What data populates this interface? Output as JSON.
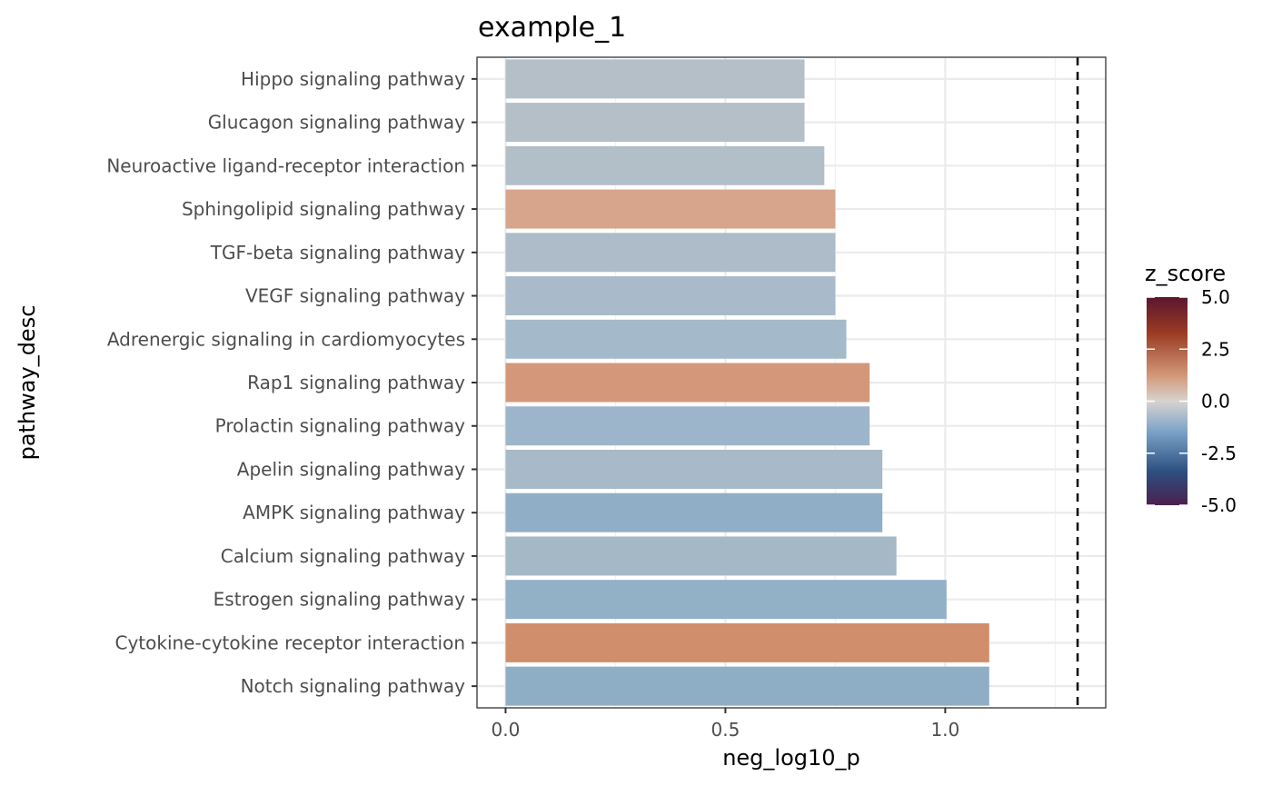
{
  "chart_data": {
    "type": "bar",
    "orientation": "horizontal",
    "title": "example_1",
    "xlabel": "neg_log10_p",
    "ylabel": "pathway_desc",
    "xlim": [
      -0.065,
      1.365
    ],
    "x_ticks": [
      0.0,
      0.5,
      1.0
    ],
    "x_tick_labels": [
      "0.0",
      "0.5",
      "1.0"
    ],
    "grid": true,
    "reference_line": {
      "x": 1.301,
      "style": "dashed",
      "color": "#000000"
    },
    "categories": [
      "Hippo signaling pathway",
      "Glucagon signaling pathway",
      "Neuroactive ligand-receptor interaction",
      "Sphingolipid signaling pathway",
      "TGF-beta signaling pathway",
      "VEGF signaling pathway",
      "Adrenergic signaling in cardiomyocytes",
      "Rap1 signaling pathway",
      "Prolactin signaling pathway",
      "Apelin signaling pathway",
      "AMPK signaling pathway",
      "Calcium signaling pathway",
      "Estrogen signaling pathway",
      "Cytokine-cytokine receptor interaction",
      "Notch signaling pathway"
    ],
    "values": [
      0.68,
      0.68,
      0.725,
      0.75,
      0.75,
      0.75,
      0.775,
      0.828,
      0.828,
      0.857,
      0.857,
      0.889,
      1.003,
      1.1,
      1.1
    ],
    "z_score": [
      -0.4,
      -0.4,
      -0.5,
      1.0,
      -0.8,
      -0.9,
      -1.1,
      1.3,
      -1.3,
      -0.9,
      -1.7,
      -0.9,
      -1.6,
      1.6,
      -1.6
    ],
    "bar_colors": [
      "#b5bfc7",
      "#b5bfc7",
      "#b3bfc8",
      "#d6a58b",
      "#adbcc8",
      "#a9bbca",
      "#a4bacb",
      "#d4977a",
      "#9db5ca",
      "#a8b9c8",
      "#90afc7",
      "#a4b8c5",
      "#92b0c6",
      "#d08e6c",
      "#8eaec6"
    ],
    "legend": {
      "title": "z_score",
      "placement": "right",
      "range": [
        -5.0,
        5.0
      ],
      "tick_values": [
        5.0,
        2.5,
        0.0,
        -2.5,
        -5.0
      ],
      "tick_labels": [
        "5.0",
        "2.5",
        "0.0",
        "-2.5",
        "-5.0"
      ],
      "gradient_colors": [
        "#5a1630",
        "#9a3a22",
        "#d39a7a",
        "#d7d3d0",
        "#7aa1c8",
        "#2c4f7f",
        "#4c1f4f"
      ]
    }
  }
}
